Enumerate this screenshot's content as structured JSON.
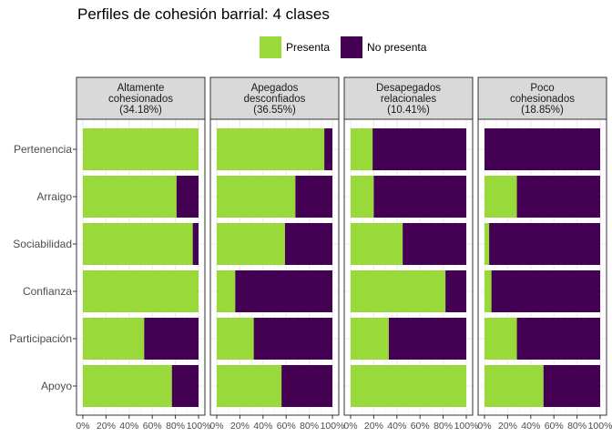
{
  "chart_data": {
    "type": "bar",
    "orientation": "horizontal",
    "stacked": true,
    "title": "Perfiles de cohesión barrial: 4 clases",
    "legend_position": "top",
    "categories": [
      "Pertenencia",
      "Arraigo",
      "Sociabilidad",
      "Confianza",
      "Participación",
      "Apoyo"
    ],
    "x_ticks": [
      "0%",
      "20%",
      "40%",
      "60%",
      "80%",
      "100%"
    ],
    "xlim": [
      0,
      100
    ],
    "colors": {
      "Presenta": "#9ad93a",
      "No presenta": "#440154"
    },
    "series_names": [
      "Presenta",
      "No presenta"
    ],
    "facets": [
      {
        "label_lines": [
          "Altamente",
          "cohesionados",
          "(34.18%)"
        ],
        "presenta": [
          100,
          81,
          95,
          100,
          53,
          77
        ]
      },
      {
        "label_lines": [
          "Apegados",
          "desconfiados",
          "(36.55%)"
        ],
        "presenta": [
          93,
          68,
          59,
          16,
          32,
          56
        ]
      },
      {
        "label_lines": [
          "Desapegados",
          "relacionales",
          "(10.41%)"
        ],
        "presenta": [
          19,
          20,
          45,
          82,
          33,
          100
        ]
      },
      {
        "label_lines": [
          "Poco",
          "cohesionados",
          "(18.85%)"
        ],
        "presenta": [
          0,
          28,
          4,
          6,
          28,
          51
        ]
      }
    ]
  }
}
